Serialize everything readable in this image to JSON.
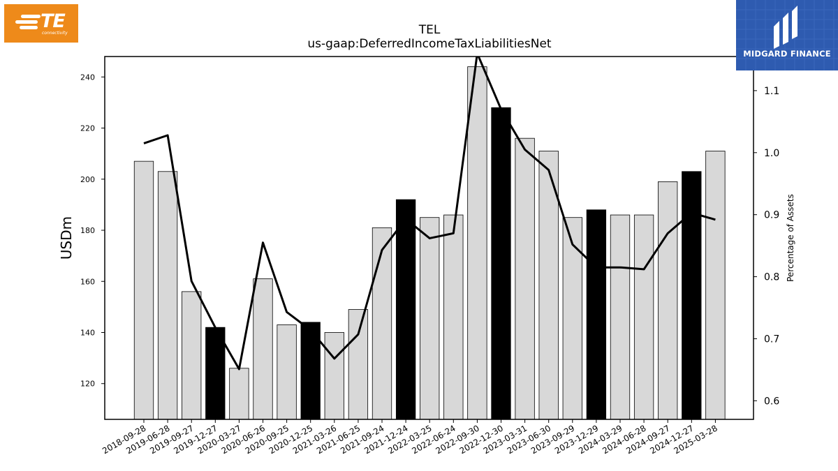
{
  "logos": {
    "left": {
      "word": "TE",
      "sub": "connectivity",
      "color": "#ee8a1a"
    },
    "right": {
      "name": "MIDGARD FINANCE",
      "color": "#2e5bb0"
    }
  },
  "chart_data": {
    "type": "bar",
    "title": "TEL",
    "subtitle": "us-gaap:DeferredIncomeTaxLiabilitiesNet",
    "ylabel": "USDm",
    "y2label": "Percentage of Assets",
    "ylim": [
      106,
      248
    ],
    "y2lim": [
      0.57,
      1.155
    ],
    "yticks": [
      120,
      140,
      160,
      180,
      200,
      220,
      240
    ],
    "y2ticks": [
      0.6,
      0.7,
      0.8,
      0.9,
      1.0,
      1.1
    ],
    "categories": [
      "2018-09-28",
      "2019-06-28",
      "2019-09-27",
      "2019-12-27",
      "2020-03-27",
      "2020-06-26",
      "2020-09-25",
      "2020-12-25",
      "2021-03-26",
      "2021-06-25",
      "2021-09-24",
      "2021-12-24",
      "2022-03-25",
      "2022-06-24",
      "2022-09-30",
      "2022-12-30",
      "2023-03-31",
      "2023-06-30",
      "2023-09-29",
      "2023-12-29",
      "2024-03-29",
      "2024-06-28",
      "2024-09-27",
      "2024-12-27",
      "2025-03-28"
    ],
    "series": [
      {
        "type": "bar",
        "values": [
          207,
          203,
          156,
          142,
          126,
          161,
          143,
          144,
          140,
          149,
          181,
          192,
          185,
          186,
          244,
          228,
          216,
          211,
          185,
          188,
          186,
          186,
          199,
          203,
          211
        ],
        "highlight": [
          false,
          false,
          false,
          true,
          false,
          false,
          false,
          true,
          false,
          false,
          false,
          true,
          false,
          false,
          false,
          true,
          false,
          false,
          false,
          true,
          false,
          false,
          false,
          true,
          false
        ]
      },
      {
        "type": "line",
        "axis": "right",
        "values": [
          1.015,
          1.028,
          0.793,
          0.718,
          0.651,
          0.855,
          0.743,
          0.714,
          0.668,
          0.707,
          0.843,
          0.893,
          0.862,
          0.87,
          1.16,
          1.07,
          1.005,
          0.972,
          0.852,
          0.815,
          0.815,
          0.812,
          0.87,
          0.903,
          0.892
        ]
      }
    ],
    "colors": {
      "bar": "#d8d8d8",
      "bar_highlight": "#000000",
      "line": "#000000"
    },
    "grid": false,
    "legend": "none"
  }
}
